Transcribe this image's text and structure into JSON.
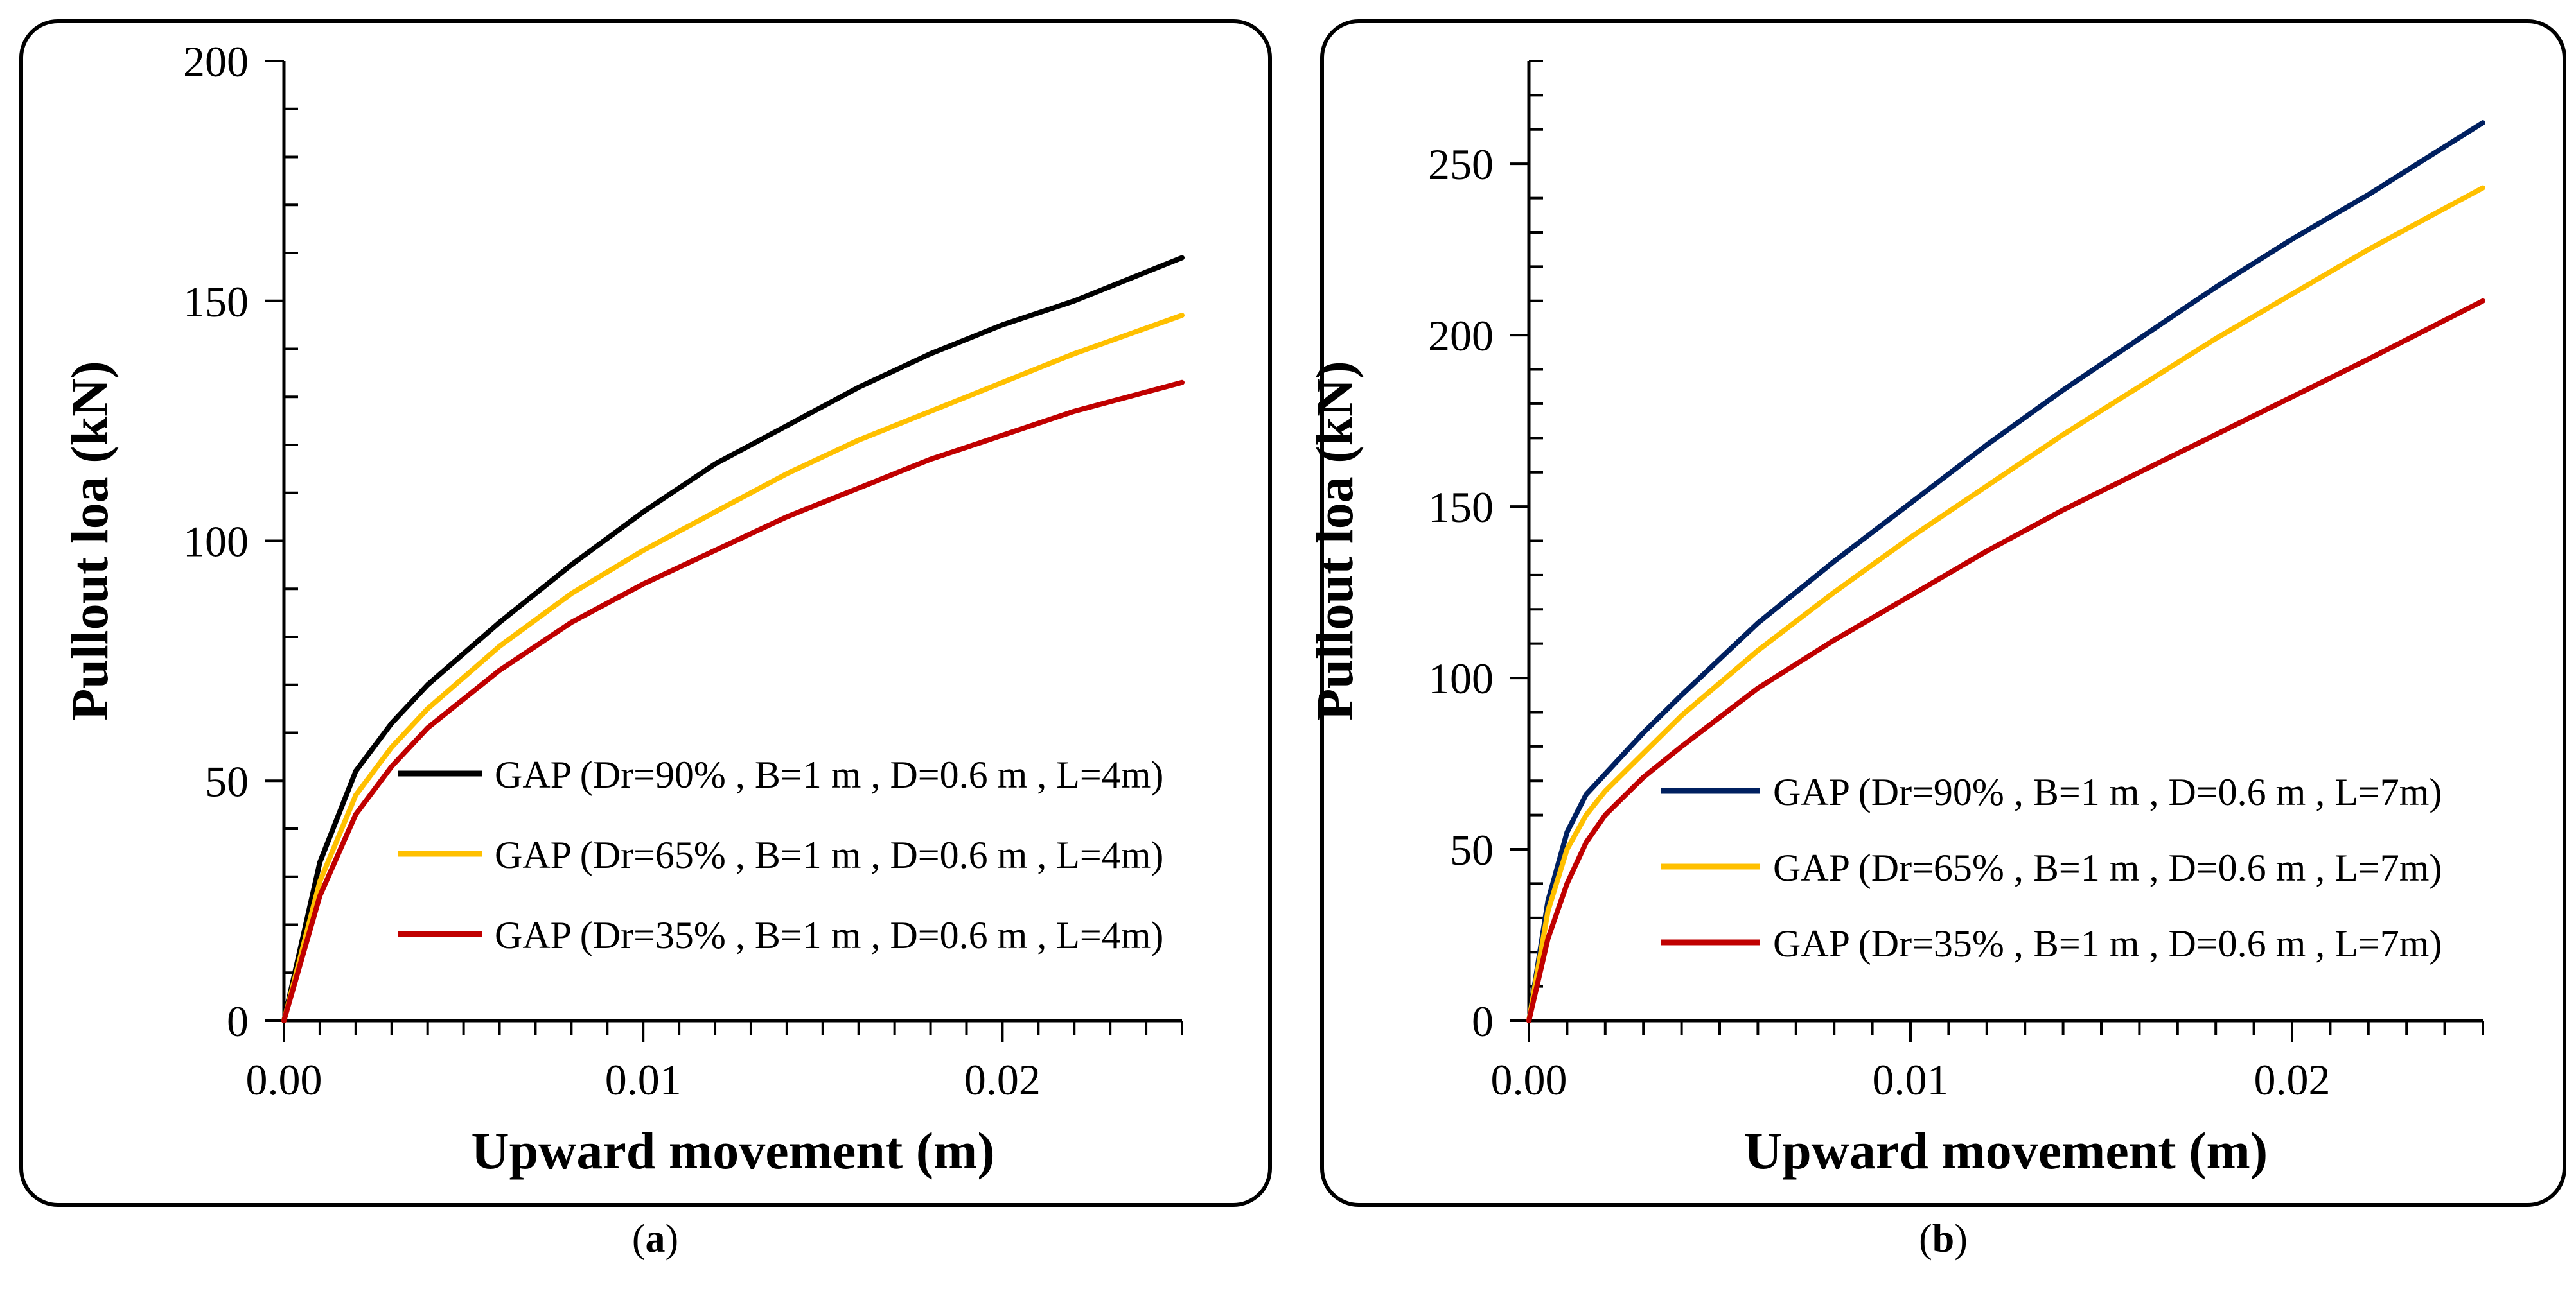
{
  "chart_data": [
    {
      "id": "a",
      "type": "line",
      "caption_letter": "a",
      "xlabel": "Upward movement (m)",
      "ylabel": "Pullout loa (kN)",
      "xlim": [
        0,
        0.025
      ],
      "ylim": [
        0,
        200
      ],
      "x_ticks": [
        0.0,
        0.01,
        0.02
      ],
      "x_tick_labels": [
        "0.00",
        "0.01",
        "0.02"
      ],
      "x_minor_step": 0.001,
      "y_ticks": [
        0,
        50,
        100,
        150,
        200
      ],
      "y_tick_labels": [
        "0",
        "50",
        "100",
        "150",
        "200"
      ],
      "y_minor_step": 10,
      "legend_position": "right-center",
      "grid": false,
      "series": [
        {
          "name": "GAP (Dr=90% , B=1 m , D=0.6 m , L=4m)",
          "color": "#000000",
          "x": [
            0,
            0.001,
            0.002,
            0.003,
            0.004,
            0.006,
            0.008,
            0.01,
            0.012,
            0.014,
            0.016,
            0.018,
            0.02,
            0.022,
            0.025
          ],
          "y": [
            0,
            33,
            52,
            62,
            70,
            83,
            95,
            106,
            116,
            124,
            132,
            139,
            145,
            150,
            159
          ]
        },
        {
          "name": "GAP (Dr=65% , B=1 m , D=0.6 m , L=4m)",
          "color": "#FFC000",
          "x": [
            0,
            0.001,
            0.002,
            0.003,
            0.004,
            0.006,
            0.008,
            0.01,
            0.012,
            0.014,
            0.016,
            0.018,
            0.02,
            0.022,
            0.025
          ],
          "y": [
            0,
            29,
            47,
            57,
            65,
            78,
            89,
            98,
            106,
            114,
            121,
            127,
            133,
            139,
            147
          ]
        },
        {
          "name": "GAP (Dr=35% , B=1 m , D=0.6 m , L=4m)",
          "color": "#C00000",
          "x": [
            0,
            0.001,
            0.002,
            0.003,
            0.004,
            0.006,
            0.008,
            0.01,
            0.012,
            0.014,
            0.016,
            0.018,
            0.02,
            0.022,
            0.025
          ],
          "y": [
            0,
            26,
            43,
            53,
            61,
            73,
            83,
            91,
            98,
            105,
            111,
            117,
            122,
            127,
            133
          ]
        }
      ]
    },
    {
      "id": "b",
      "type": "line",
      "caption_letter": "b",
      "xlabel": "Upward movement (m)",
      "ylabel": "Pullout loa (kN)",
      "xlim": [
        0,
        0.025
      ],
      "ylim": [
        0,
        280
      ],
      "x_ticks": [
        0.0,
        0.01,
        0.02
      ],
      "x_tick_labels": [
        "0.00",
        "0.01",
        "0.02"
      ],
      "x_minor_step": 0.001,
      "y_ticks": [
        0,
        50,
        100,
        150,
        200,
        250
      ],
      "y_tick_labels": [
        "0",
        "50",
        "100",
        "150",
        "200",
        "250"
      ],
      "y_minor_step": 10,
      "legend_position": "right-center",
      "grid": false,
      "series": [
        {
          "name": "GAP (Dr=90% , B=1 m , D=0.6 m , L=7m)",
          "color": "#002060",
          "x": [
            0,
            0.0005,
            0.001,
            0.0015,
            0.002,
            0.003,
            0.004,
            0.006,
            0.008,
            0.01,
            0.012,
            0.014,
            0.016,
            0.018,
            0.02,
            0.022,
            0.025
          ],
          "y": [
            0,
            35,
            55,
            66,
            72,
            84,
            95,
            116,
            134,
            151,
            168,
            184,
            199,
            214,
            228,
            241,
            262
          ]
        },
        {
          "name": "GAP (Dr=65% , B=1 m , D=0.6 m , L=7m)",
          "color": "#FFC000",
          "x": [
            0,
            0.0005,
            0.001,
            0.0015,
            0.002,
            0.003,
            0.004,
            0.006,
            0.008,
            0.01,
            0.012,
            0.014,
            0.016,
            0.018,
            0.02,
            0.022,
            0.025
          ],
          "y": [
            0,
            32,
            50,
            60,
            67,
            78,
            89,
            108,
            125,
            141,
            156,
            171,
            185,
            199,
            212,
            225,
            243
          ]
        },
        {
          "name": "GAP (Dr=35% , B=1 m , D=0.6 m , L=7m)",
          "color": "#C00000",
          "x": [
            0,
            0.0005,
            0.001,
            0.0015,
            0.002,
            0.003,
            0.004,
            0.006,
            0.008,
            0.01,
            0.012,
            0.014,
            0.016,
            0.018,
            0.02,
            0.022,
            0.025
          ],
          "y": [
            0,
            24,
            40,
            52,
            60,
            71,
            80,
            97,
            111,
            124,
            137,
            149,
            160,
            171,
            182,
            193,
            210
          ]
        }
      ]
    }
  ]
}
